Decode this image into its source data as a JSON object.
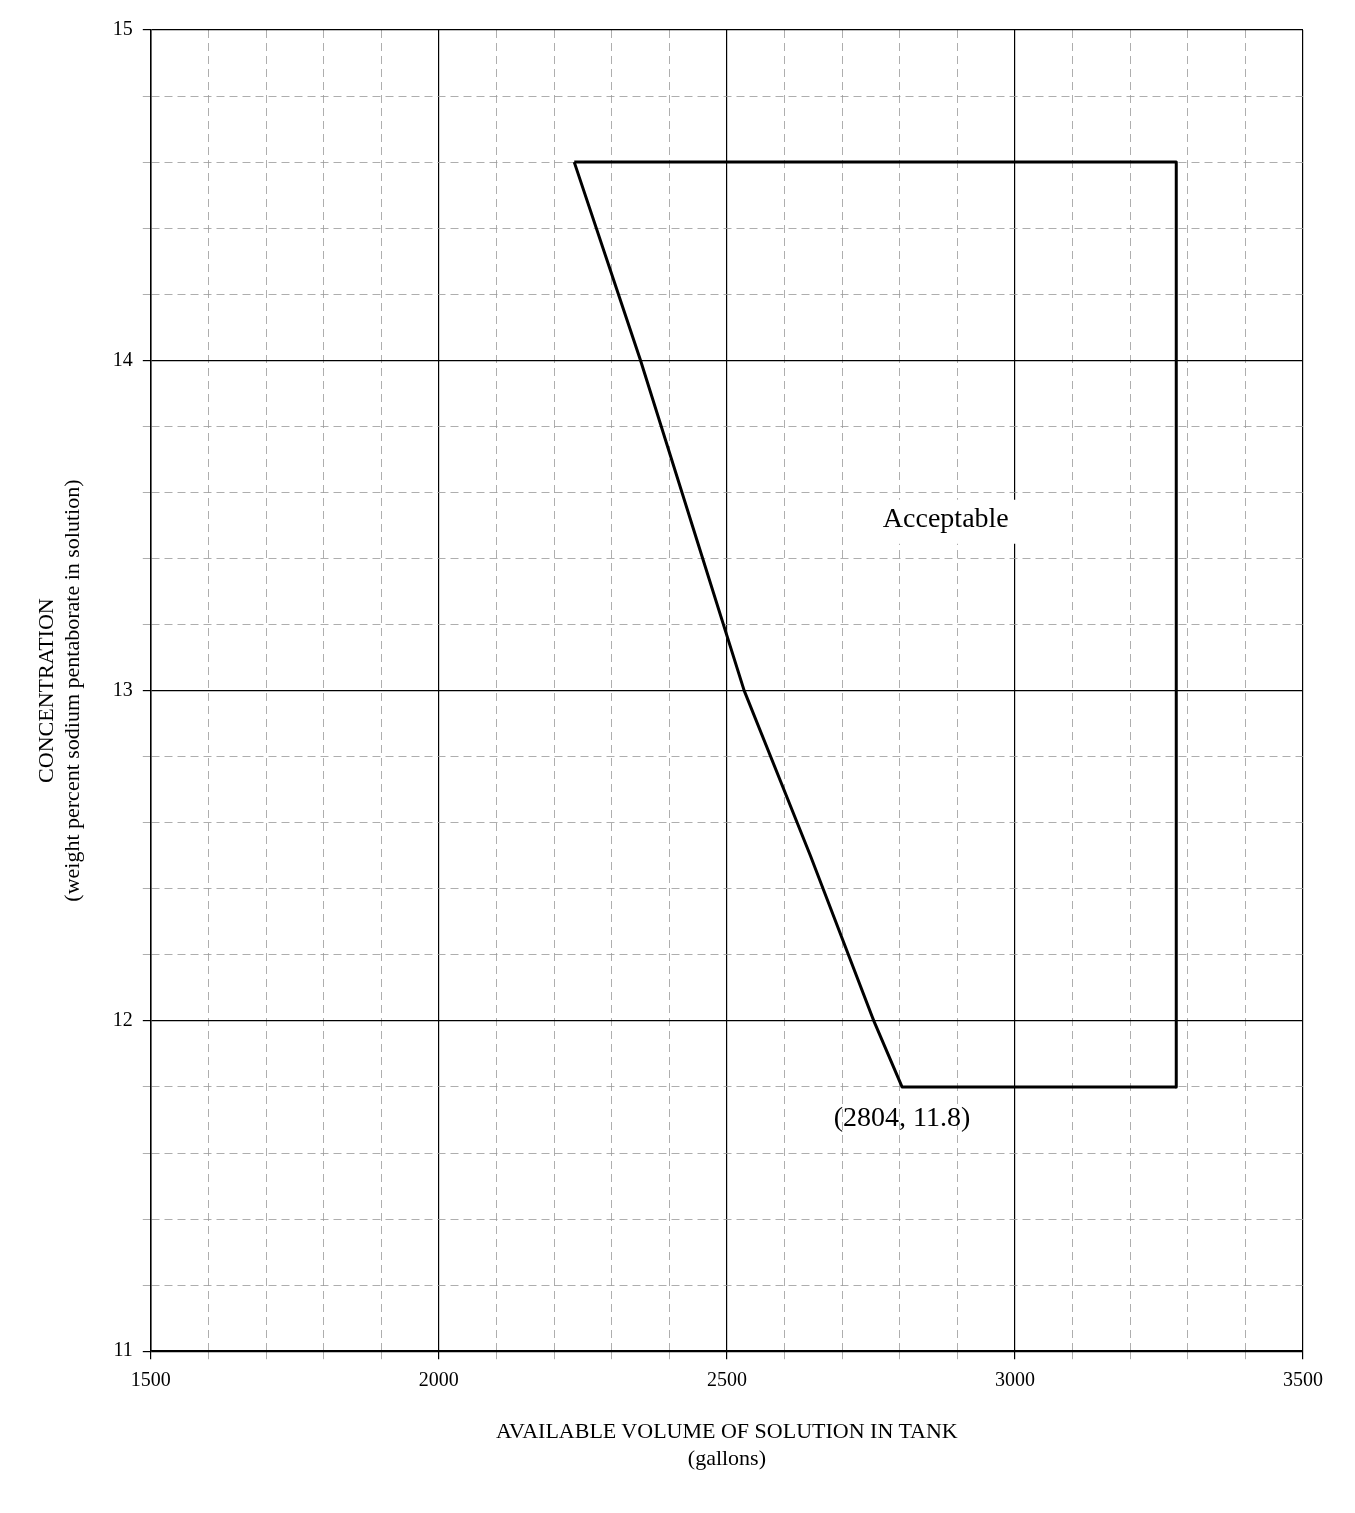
{
  "chart_data": {
    "type": "line",
    "xlabel": "AVAILABLE VOLUME OF SOLUTION IN TANK\n(gallons)",
    "ylabel": "CONCENTRATION\n(weight percent sodium pentaborate in solution)",
    "series": [
      {
        "color": "#000000",
        "x": [
          2235,
          2350,
          2440,
          2530,
          2645,
          2755,
          2804,
          3280
        ],
        "values": [
          14.6,
          14.0,
          13.5,
          13.0,
          12.5,
          12.0,
          11.8,
          11.8
        ]
      },
      {
        "color": "#000000",
        "x": [
          2235,
          3280,
          3280
        ],
        "values": [
          14.6,
          14.6,
          11.8
        ]
      }
    ],
    "xlim": [
      1500,
      3500
    ],
    "ylim": [
      11,
      15
    ],
    "xticks": [
      1500,
      {
        "value": 1600,
        "label": null
      },
      {
        "value": 1700,
        "label": null
      },
      {
        "value": 1800,
        "label": null
      },
      {
        "value": 1900,
        "label": null
      },
      2000,
      {
        "value": 2100,
        "label": null
      },
      {
        "value": 2200,
        "label": null
      },
      {
        "value": 2300,
        "label": null
      },
      {
        "value": 2400,
        "label": null
      },
      2500,
      {
        "value": 2600,
        "label": null
      },
      {
        "value": 2700,
        "label": null
      },
      {
        "value": 2800,
        "label": null
      },
      {
        "value": 2900,
        "label": null
      },
      3000,
      {
        "value": 3100,
        "label": null
      },
      {
        "value": 3200,
        "label": null
      },
      {
        "value": 3300,
        "label": null
      },
      {
        "value": 3400,
        "label": null
      },
      3500
    ],
    "yticks": [
      11,
      {
        "value": 11.2,
        "label": null
      },
      {
        "value": 11.4,
        "label": null
      },
      {
        "value": 11.6,
        "label": null
      },
      {
        "value": 11.8,
        "label": null
      },
      12,
      {
        "value": 12.2,
        "label": null
      },
      {
        "value": 12.4,
        "label": null
      },
      {
        "value": 12.6,
        "label": null
      },
      {
        "value": 12.8,
        "label": null
      },
      13,
      {
        "value": 13.2,
        "label": null
      },
      {
        "value": 13.4,
        "label": null
      },
      {
        "value": 13.6,
        "label": null
      },
      {
        "value": 13.8,
        "label": null
      },
      14,
      {
        "value": 14.2,
        "label": null
      },
      {
        "value": 14.4,
        "label": null
      },
      {
        "value": 14.6,
        "label": null
      },
      {
        "value": 14.8,
        "label": null
      },
      15
    ],
    "grid": true,
    "legend": false,
    "marker": "none",
    "line_style": "solid",
    "annotations": [
      "Acceptable",
      {
        "text": "(2804, 11.8)",
        "x": 2804,
        "y": 11.8
      }
    ]
  }
}
